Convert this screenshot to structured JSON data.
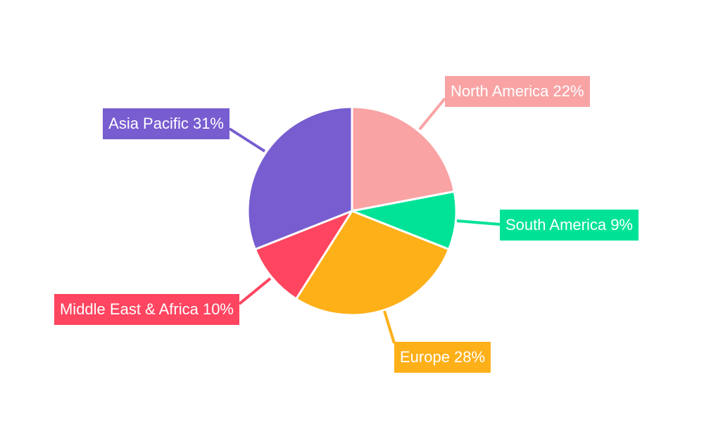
{
  "chart_data": {
    "type": "pie",
    "title": "",
    "categories": [
      "North America",
      "South America",
      "Europe",
      "Middle East & Africa",
      "Asia Pacific"
    ],
    "values": [
      22,
      9,
      28,
      10,
      31
    ],
    "labels": [
      "North America 22%",
      "South America 9%",
      "Europe 28%",
      "Middle East & Africa 10%",
      "Asia Pacific 31%"
    ],
    "colors": [
      "#f9a3a4",
      "#00e396",
      "#feb019",
      "#ff4560",
      "#775dd0"
    ],
    "start_angle": "top, clockwise",
    "legend": "none"
  }
}
